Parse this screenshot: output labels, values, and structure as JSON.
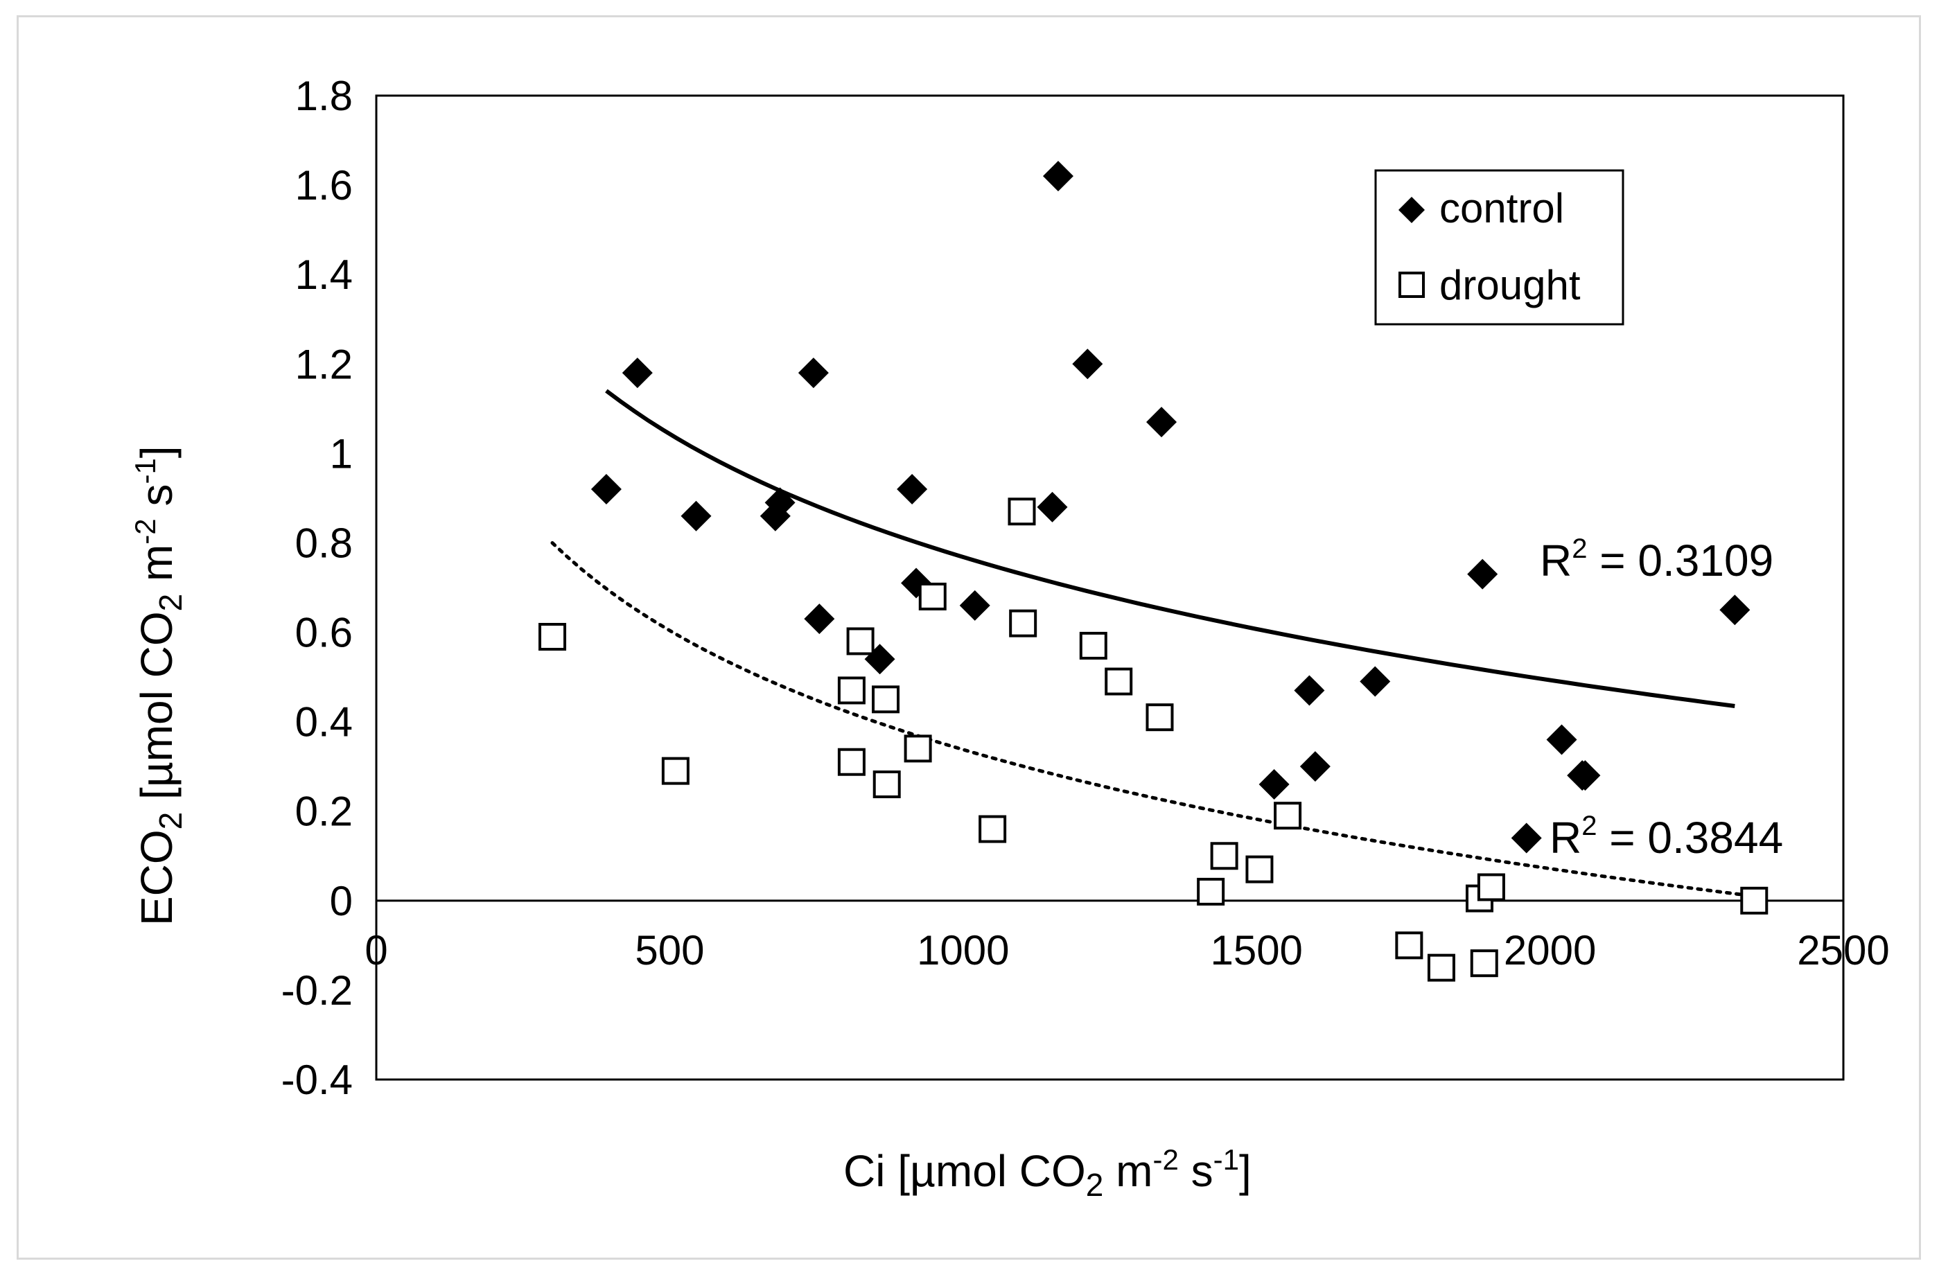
{
  "chart_data": {
    "type": "scatter",
    "title": "",
    "xlabel": {
      "base": "Ci [µmol CO",
      "sub": "2",
      "mid": " m",
      "sup1": "-2",
      "mid2": " s",
      "sup2": "-1",
      "end": "]"
    },
    "ylabel": {
      "base": "ECO",
      "sub": "2",
      "mid": " [µmol CO",
      "sub2": "2",
      "mid2": " m",
      "sup1": "-2",
      "mid3": " s",
      "sup2": "-1",
      "end": "]"
    },
    "xlim": [
      0,
      2500
    ],
    "ylim": [
      -0.4,
      1.8
    ],
    "x_ticks": [
      0,
      500,
      1000,
      1500,
      2000,
      2500
    ],
    "x_tick_labels": [
      "0",
      "500",
      "1000",
      "1500",
      "2000",
      "2500"
    ],
    "y_ticks": [
      1.8,
      1.6,
      1.4,
      1.2,
      1,
      0.8,
      0.6,
      0.4,
      0.2,
      0,
      -0.2,
      -0.4
    ],
    "y_tick_labels": [
      "1.8",
      "1.6",
      "1.4",
      "1.2",
      "1",
      "0.8",
      "0.6",
      "0.4",
      "0.2",
      "0",
      "-0.2",
      "-0.4"
    ],
    "legend_position": "top-right",
    "series": [
      {
        "name": "control",
        "marker": "diamond-filled",
        "color": "#000000",
        "points": [
          [
            392,
            0.92
          ],
          [
            445,
            1.18
          ],
          [
            545,
            0.86
          ],
          [
            680,
            0.86
          ],
          [
            688,
            0.89
          ],
          [
            745,
            1.18
          ],
          [
            755,
            0.63
          ],
          [
            858,
            0.54
          ],
          [
            913,
            0.92
          ],
          [
            920,
            0.71
          ],
          [
            1020,
            0.66
          ],
          [
            1152,
            0.88
          ],
          [
            1162,
            1.62
          ],
          [
            1212,
            1.2
          ],
          [
            1338,
            1.07
          ],
          [
            1530,
            0.26
          ],
          [
            1590,
            0.47
          ],
          [
            1600,
            0.3
          ],
          [
            1702,
            0.49
          ],
          [
            1885,
            0.73
          ],
          [
            1960,
            0.14
          ],
          [
            2020,
            0.36
          ],
          [
            2055,
            0.28
          ],
          [
            2060,
            0.28
          ],
          [
            2315,
            0.65
          ]
        ],
        "trendline": {
          "type": "logarithmic",
          "style": "solid",
          "x_range": [
            392,
            2315
          ],
          "y_start": 1.14,
          "y_end": 0.435,
          "r2_label": "0.3109"
        }
      },
      {
        "name": "drought",
        "marker": "square-open",
        "color": "#000000",
        "points": [
          [
            300,
            0.59
          ],
          [
            510,
            0.29
          ],
          [
            810,
            0.47
          ],
          [
            810,
            0.31
          ],
          [
            825,
            0.58
          ],
          [
            868,
            0.45
          ],
          [
            870,
            0.26
          ],
          [
            923,
            0.34
          ],
          [
            948,
            0.68
          ],
          [
            1050,
            0.16
          ],
          [
            1100,
            0.87
          ],
          [
            1102,
            0.62
          ],
          [
            1222,
            0.57
          ],
          [
            1265,
            0.49
          ],
          [
            1335,
            0.41
          ],
          [
            1422,
            0.02
          ],
          [
            1445,
            0.1
          ],
          [
            1505,
            0.07
          ],
          [
            1553,
            0.19
          ],
          [
            1760,
            -0.1
          ],
          [
            1815,
            -0.15
          ],
          [
            1880,
            0.005
          ],
          [
            1888,
            -0.14
          ],
          [
            1900,
            0.03
          ],
          [
            2348,
            0.0
          ]
        ],
        "trendline": {
          "type": "logarithmic",
          "style": "dotted",
          "x_range": [
            300,
            2348
          ],
          "y_start": 0.8,
          "y_end": 0.01,
          "r2_label": "0.3844"
        }
      }
    ],
    "annotations": [
      {
        "text_prefix": "R",
        "sup": "2",
        "text_suffix": " = 0.3109",
        "series": "control"
      },
      {
        "text_prefix": "R",
        "sup": "2",
        "text_suffix": " = 0.3844",
        "series": "drought"
      }
    ]
  }
}
